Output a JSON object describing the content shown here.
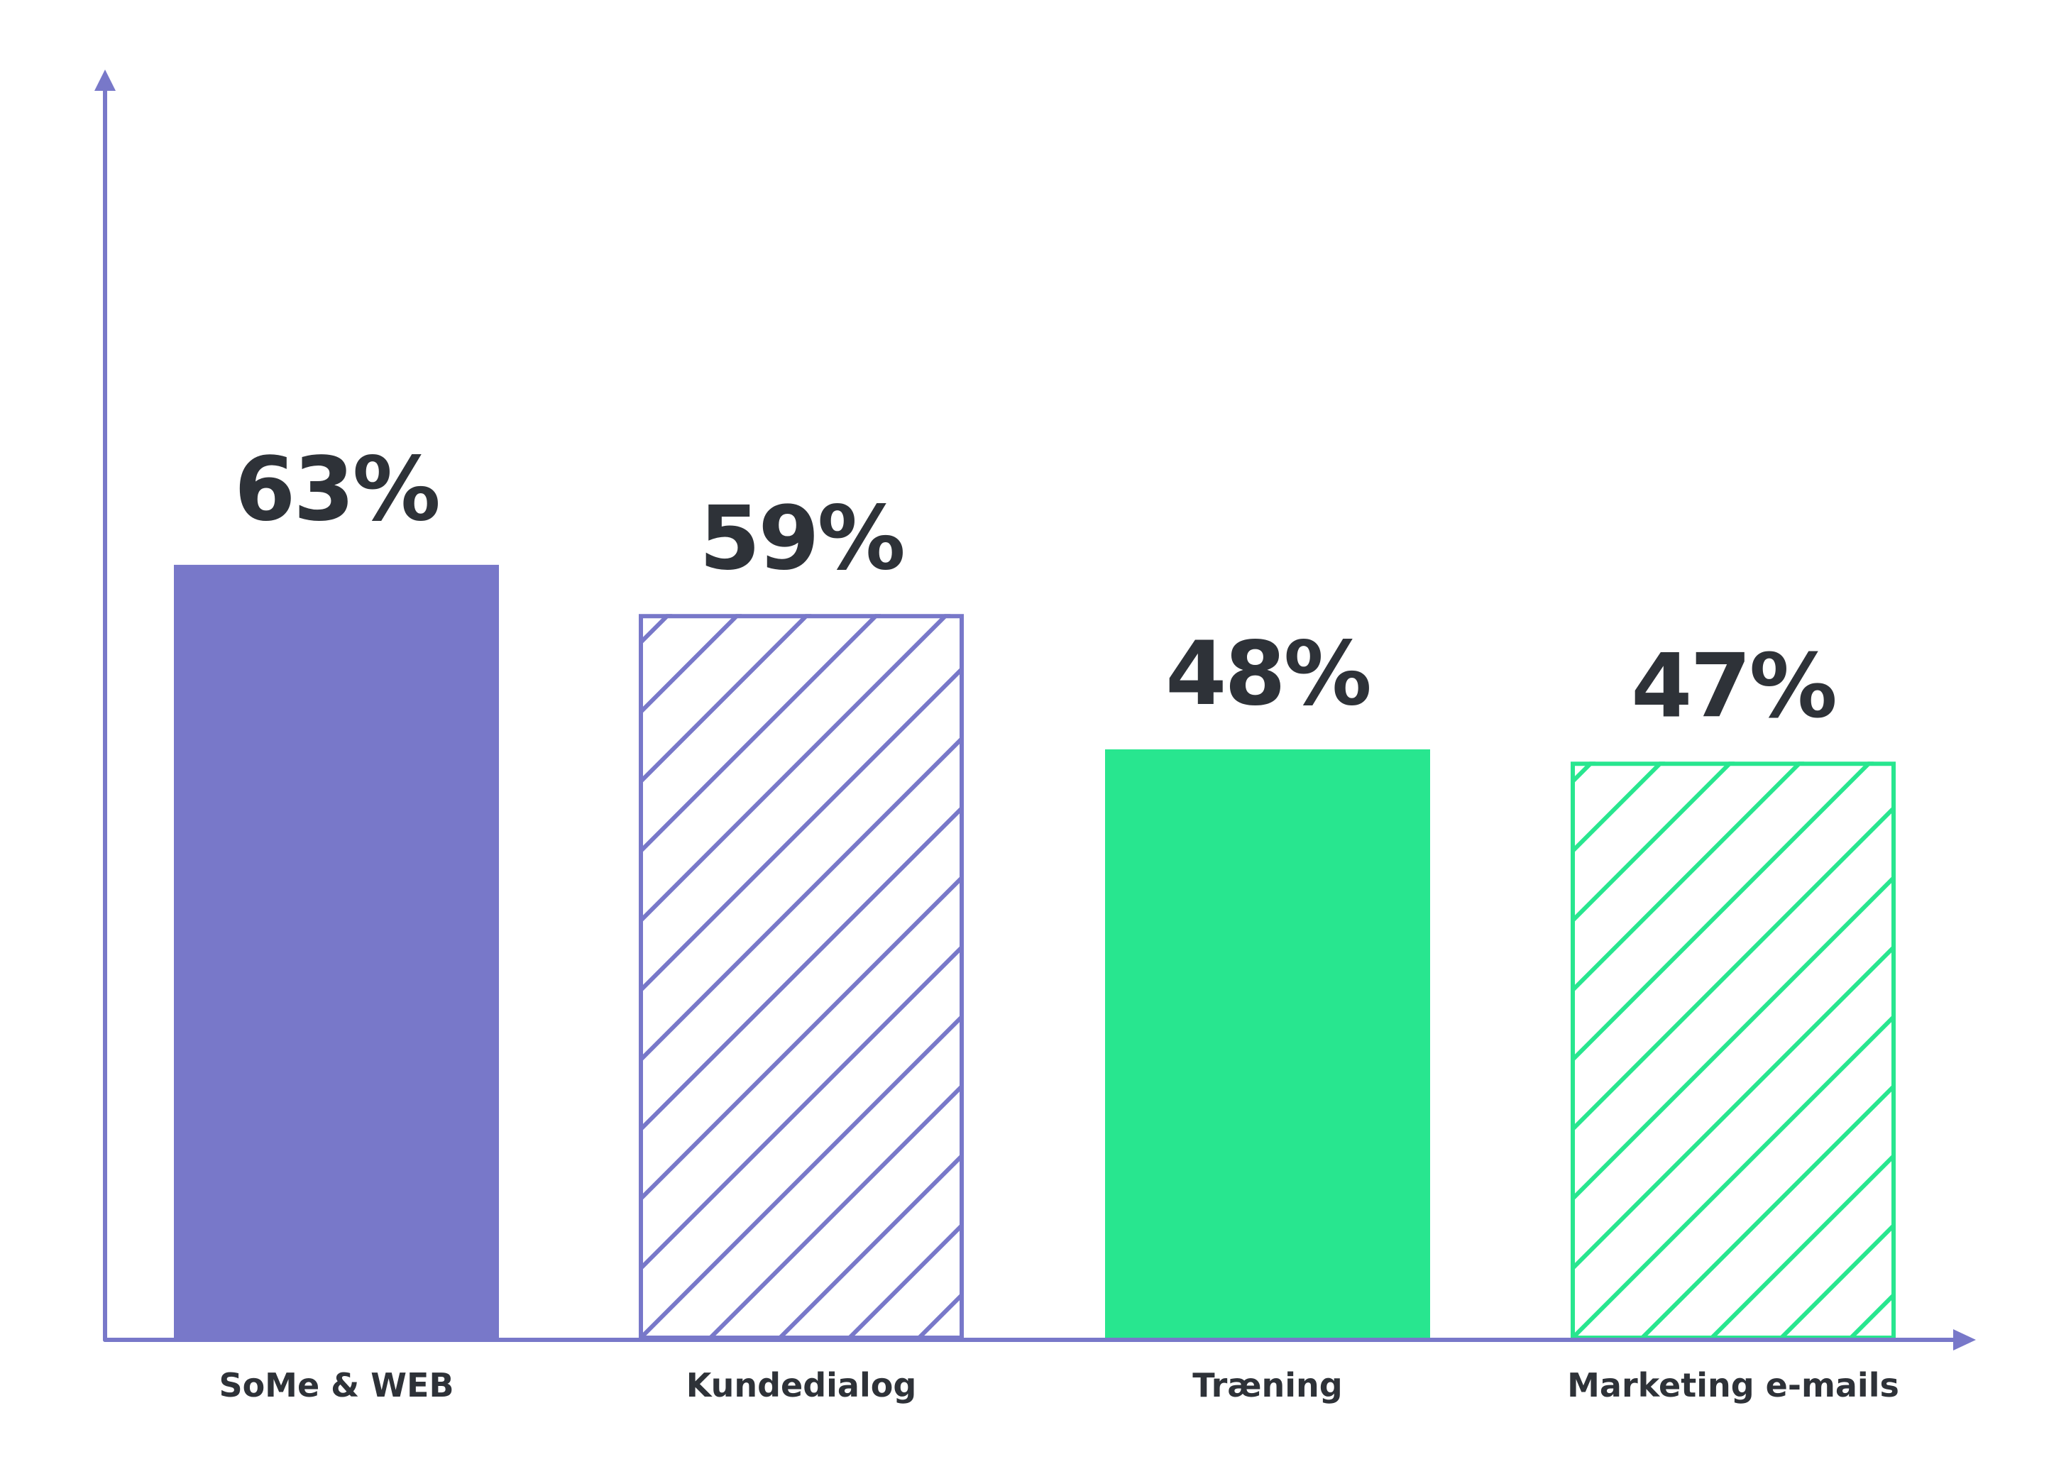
{
  "chart_data": {
    "type": "bar",
    "title": "",
    "xlabel": "",
    "ylabel": "",
    "ylim": [
      0,
      100
    ],
    "grid": false,
    "categories": [
      "SoMe & WEB",
      "Kundedialog",
      "Træning",
      "Marketing e-mails"
    ],
    "values": [
      63,
      59,
      48,
      47
    ],
    "value_labels": [
      "63%",
      "59%",
      "48%",
      "47%"
    ],
    "bar_styles": [
      "solid",
      "hatched",
      "solid",
      "hatched"
    ],
    "bar_colors": [
      "#7878c9",
      "#7878c9",
      "#28e68f",
      "#28e68f"
    ],
    "axis_color": "#7878c9",
    "text_color": "#2e3238"
  }
}
